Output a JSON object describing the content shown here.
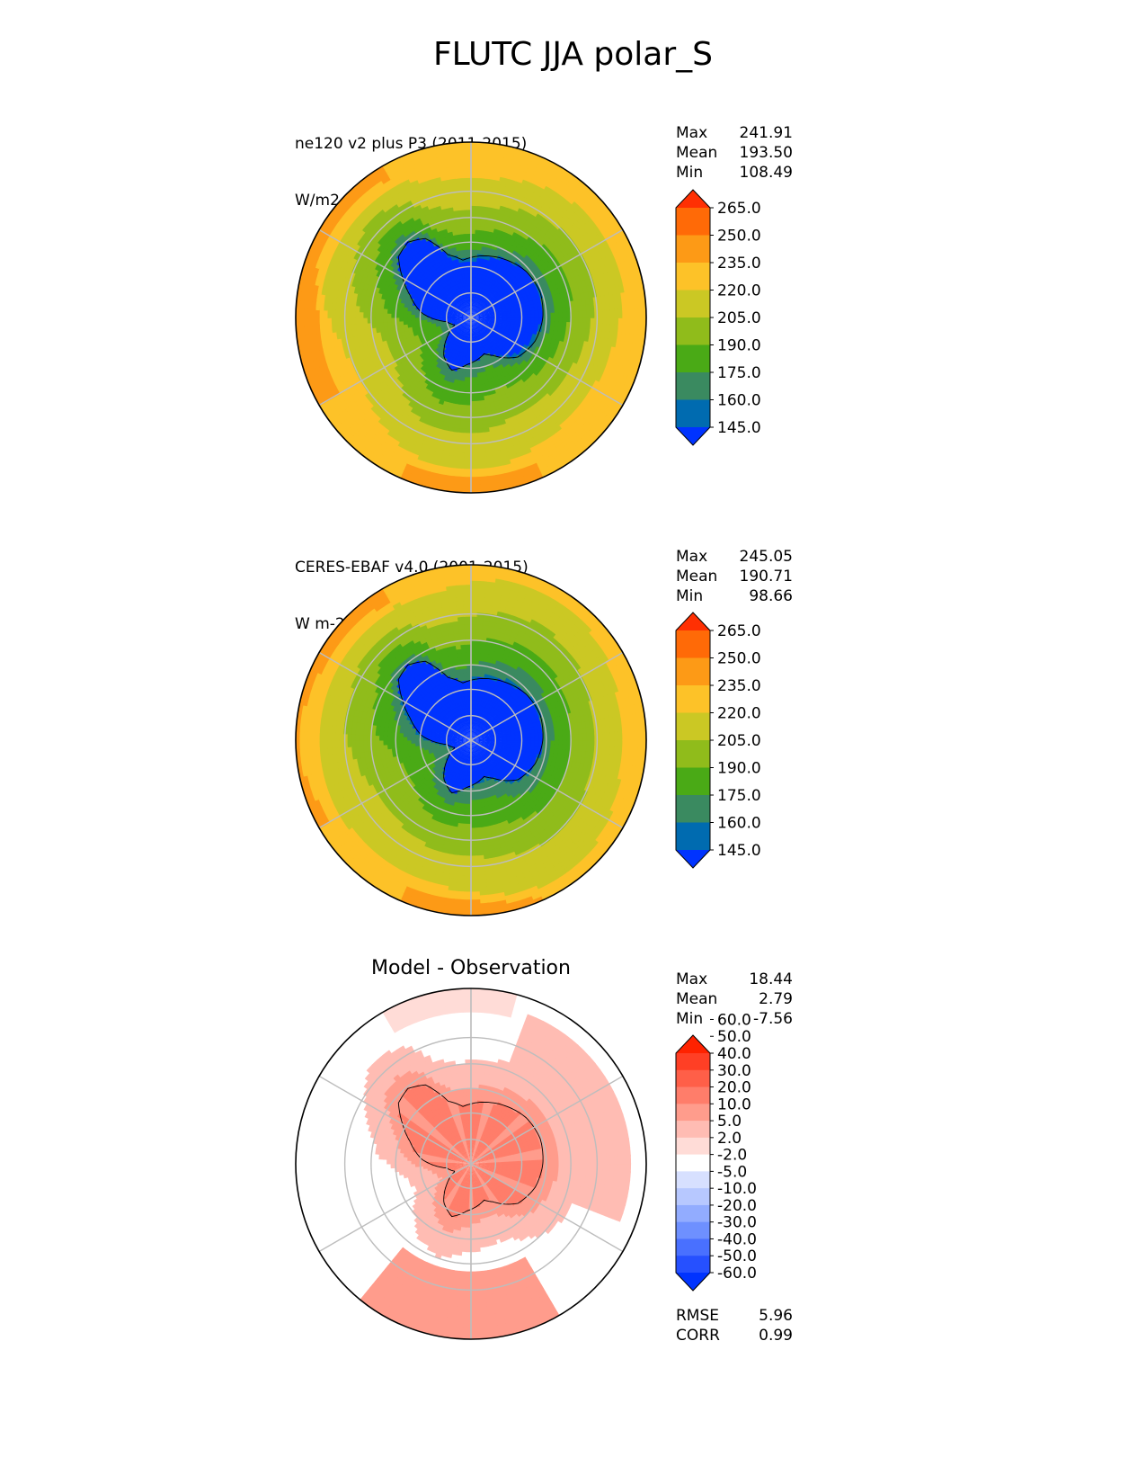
{
  "figure": {
    "title": "FLUTC JJA polar_S"
  },
  "colors": {
    "model_scale": [
      "#0033ff",
      "#006bb0",
      "#3a8a60",
      "#4aaa16",
      "#90bc1b",
      "#cbc824",
      "#fdc228",
      "#fd9a16",
      "#ff6a07",
      "#ff3003"
    ],
    "diff_scale": [
      "#0033ff",
      "#2650ff",
      "#4970ff",
      "#6e90ff",
      "#92acff",
      "#b7c8ff",
      "#d7e0ff",
      "#ffffff",
      "#ffdcd7",
      "#ffbcb3",
      "#ff9c8c",
      "#ff7d6a",
      "#ff5f48",
      "#ff3f25",
      "#ff2200"
    ],
    "coast": "#000000",
    "grid": "#bdbdbd"
  },
  "chart_data": [
    {
      "type": "heatmap",
      "projection": "south-polar-stereographic",
      "title": "ne120 v2 plus P3 (2011-2015)",
      "units": "W/m2",
      "stats": {
        "max_label": "Max",
        "max": "241.91",
        "mean_label": "Mean",
        "mean": "193.50",
        "min_label": "Min",
        "min": "108.49"
      },
      "colorbar": {
        "ticks": [
          "145.0",
          "160.0",
          "175.0",
          "190.0",
          "205.0",
          "220.0",
          "235.0",
          "250.0",
          "265.0"
        ],
        "extend": "both"
      },
      "field": {
        "pole_value": 135,
        "coast_value": 160,
        "offset": 0
      }
    },
    {
      "type": "heatmap",
      "projection": "south-polar-stereographic",
      "title": "CERES-EBAF v4.0 (2001-2015)",
      "units": "W m-2",
      "stats": {
        "max_label": "Max",
        "max": "245.05",
        "mean_label": "Mean",
        "mean": "190.71",
        "min_label": "Min",
        "min": "98.66"
      },
      "colorbar": {
        "ticks": [
          "145.0",
          "160.0",
          "175.0",
          "190.0",
          "205.0",
          "220.0",
          "235.0",
          "250.0",
          "265.0"
        ],
        "extend": "both"
      },
      "field": {
        "pole_value": 132,
        "coast_value": 158,
        "offset": -2
      }
    },
    {
      "type": "heatmap",
      "projection": "south-polar-stereographic",
      "title": "Model - Observation",
      "stats": {
        "max_label": "Max",
        "max": "18.44",
        "mean_label": "Mean",
        "mean": "2.79",
        "min_label": "Min",
        "min": "-7.56",
        "rmse_label": "RMSE",
        "rmse": "5.96",
        "corr_label": "CORR",
        "corr": "0.99"
      },
      "colorbar": {
        "ticks": [
          "-60.0",
          "-50.0",
          "-40.0",
          "-30.0",
          "-20.0",
          "-10.0",
          "-5.0",
          "-2.0",
          "2.0",
          "5.0",
          "10.0",
          "20.0",
          "30.0",
          "40.0",
          "50.0",
          "60.0"
        ],
        "extend": "both"
      },
      "field": {
        "pole_value": 12,
        "coast_value": 12
      }
    }
  ]
}
